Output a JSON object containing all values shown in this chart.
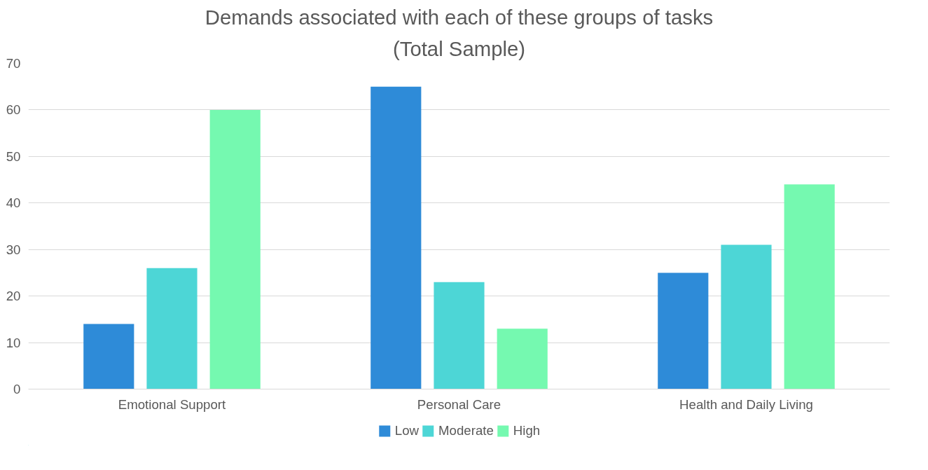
{
  "chart_data": {
    "type": "bar",
    "title": "Demands associated with each of these groups of tasks",
    "subtitle": "(Total Sample)",
    "categories": [
      "Emotional Support",
      "Personal Care",
      "Health and Daily Living"
    ],
    "series": [
      {
        "name": "Low",
        "color": "#2e8bd8",
        "values": [
          14,
          65,
          25
        ]
      },
      {
        "name": "Moderate",
        "color": "#4dd6d6",
        "values": [
          26,
          23,
          31
        ]
      },
      {
        "name": "High",
        "color": "#75f9b0",
        "values": [
          60,
          13,
          44
        ]
      }
    ],
    "ylim": [
      0,
      70
    ],
    "yticks": [
      0,
      10,
      20,
      30,
      40,
      50,
      60,
      70
    ],
    "grid": "y",
    "legend": "bottom"
  }
}
